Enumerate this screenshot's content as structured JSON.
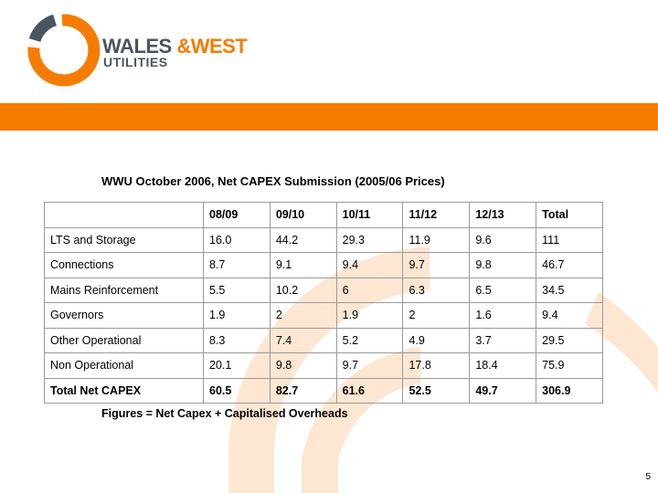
{
  "colors": {
    "brand_orange": "#f57c00",
    "brand_slate": "#4a5560",
    "watermark": "#fde7d2"
  },
  "brand": {
    "line1": "WALES&WEST",
    "line2": "UTILITIES",
    "icon": "ring-logo-icon"
  },
  "slide": {
    "title": "WWU October 2006, Net CAPEX Submission (2005/06 Prices)",
    "footnote": "Figures = Net Capex  + Capitalised Overheads",
    "page_number": "5"
  },
  "table": {
    "columns": [
      "",
      "08/09",
      "09/10",
      "10/11",
      "11/12",
      "12/13",
      "Total"
    ],
    "rows": [
      {
        "label": "LTS and Storage",
        "values": [
          "16.0",
          "44.2",
          "29.3",
          "11.9",
          "9.6",
          "111"
        ]
      },
      {
        "label": "Connections",
        "values": [
          "8.7",
          "9.1",
          "9.4",
          "9.7",
          "9.8",
          "46.7"
        ]
      },
      {
        "label": "Mains Reinforcement",
        "values": [
          "5.5",
          "10.2",
          "6",
          "6.3",
          "6.5",
          "34.5"
        ]
      },
      {
        "label": "Governors",
        "values": [
          "1.9",
          "2",
          "1.9",
          "2",
          "1.6",
          "9.4"
        ]
      },
      {
        "label": "Other Operational",
        "values": [
          "8.3",
          "7.4",
          "5.2",
          "4.9",
          "3.7",
          "29.5"
        ]
      },
      {
        "label": "Non Operational",
        "values": [
          "20.1",
          "9.8",
          "9.7",
          "17.8",
          "18.4",
          "75.9"
        ]
      },
      {
        "label": "Total Net CAPEX",
        "values": [
          "60.5",
          "82.7",
          "61.6",
          "52.5",
          "49.7",
          "306.9"
        ]
      }
    ]
  }
}
